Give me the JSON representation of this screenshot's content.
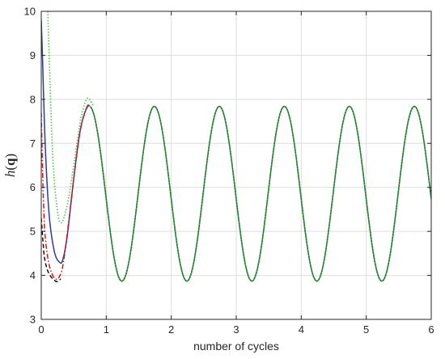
{
  "chart_data": {
    "type": "line",
    "title": "",
    "xlabel": "number of cycles",
    "ylabel": {
      "italic": "h",
      "open": "(",
      "bold": "q",
      "close": ")"
    },
    "xlim": [
      0,
      6
    ],
    "ylim": [
      3,
      10
    ],
    "xticks": [
      "0",
      "1",
      "2",
      "3",
      "4",
      "5",
      "6"
    ],
    "yticks": [
      "3",
      "4",
      "5",
      "6",
      "7",
      "8",
      "9",
      "10"
    ],
    "grid": true,
    "legend": "none",
    "series": [
      {
        "color": "#3ac83a",
        "style": "dotted",
        "x": [
          0.1,
          0.13,
          0.18,
          0.25,
          0.31,
          0.4,
          0.5,
          0.6,
          0.68,
          0.73,
          0.8
        ],
        "y": [
          10.0,
          8.6,
          6.6,
          5.45,
          5.2,
          5.6,
          6.5,
          7.5,
          7.95,
          8.02,
          7.85
        ]
      },
      {
        "color": "#2e3a9a",
        "style": "solid",
        "x": [
          0.0,
          0.02,
          0.06,
          0.12,
          0.2,
          0.28,
          0.33,
          0.4,
          0.5,
          0.6,
          0.7,
          0.75
        ],
        "y": [
          9.8,
          8.9,
          7.0,
          5.4,
          4.55,
          4.3,
          4.35,
          4.9,
          6.2,
          7.3,
          7.82,
          7.85
        ]
      },
      {
        "color": "#e01010",
        "style": "dashdot",
        "x": [
          0.0,
          0.02,
          0.05,
          0.1,
          0.16,
          0.22,
          0.27,
          0.33,
          0.4,
          0.5,
          0.6,
          0.7,
          0.75
        ],
        "y": [
          7.7,
          6.4,
          5.1,
          4.4,
          4.05,
          3.92,
          3.95,
          4.2,
          4.95,
          6.2,
          7.3,
          7.8,
          7.85
        ]
      },
      {
        "color": "#111111",
        "style": "dashed",
        "x": [
          0.0,
          0.02,
          0.05,
          0.1,
          0.16,
          0.22,
          0.25,
          0.3
        ],
        "y": [
          5.3,
          4.9,
          4.4,
          4.1,
          3.95,
          3.87,
          3.86,
          3.92
        ]
      },
      {
        "color": "#1a6e2a",
        "style": "solid",
        "periodic": true,
        "x_start": 0.75,
        "x_end": 6.0,
        "peak_x": 0.74,
        "period": 1.0,
        "max": 7.84,
        "min": 3.87
      }
    ]
  }
}
